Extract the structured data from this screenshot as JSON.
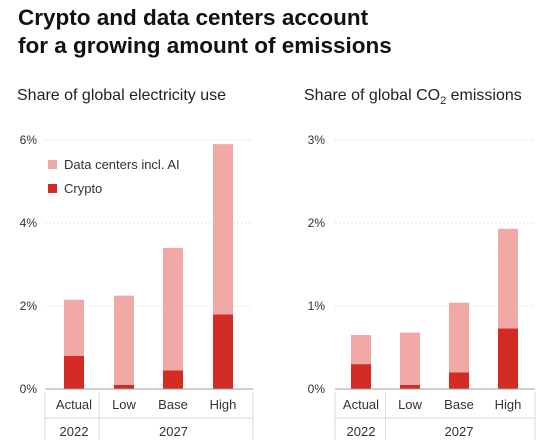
{
  "title_line1": "Crypto and data centers account",
  "title_line2": "for a growing amount of emissions",
  "colors": {
    "data_centers": "#f0a9a4",
    "crypto": "#d42b24",
    "grid": "#d9d9d9",
    "axis": "#9e9e9e",
    "text": "#333333"
  },
  "chart_data": [
    {
      "type": "bar",
      "stacked": true,
      "title": "Share of global electricity use",
      "categories": [
        "Actual",
        "Low",
        "Base",
        "High"
      ],
      "category_groups": [
        {
          "label": "2022",
          "span": 1
        },
        {
          "label": "2027",
          "span": 3
        }
      ],
      "series": [
        {
          "name": "Crypto",
          "values": [
            0.8,
            0.1,
            0.45,
            1.8
          ]
        },
        {
          "name": "Data centers incl. AI",
          "values": [
            1.35,
            2.15,
            2.95,
            4.1
          ]
        }
      ],
      "ylim": [
        0,
        6
      ],
      "yticks": [
        "0%",
        "2%",
        "4%",
        "6%"
      ],
      "legend": "top-left"
    },
    {
      "type": "bar",
      "stacked": true,
      "title_main": "Share of global CO",
      "title_sub": "2",
      "title_tail": " emissions",
      "categories": [
        "Actual",
        "Low",
        "Base",
        "High"
      ],
      "category_groups": [
        {
          "label": "2022",
          "span": 1
        },
        {
          "label": "2027",
          "span": 3
        }
      ],
      "series": [
        {
          "name": "Crypto",
          "values": [
            0.3,
            0.05,
            0.2,
            0.73
          ]
        },
        {
          "name": "Data centers incl. AI",
          "values": [
            0.35,
            0.63,
            0.84,
            1.2
          ]
        }
      ],
      "ylim": [
        0,
        3
      ],
      "yticks": [
        "0%",
        "1%",
        "2%",
        "3%"
      ]
    }
  ]
}
